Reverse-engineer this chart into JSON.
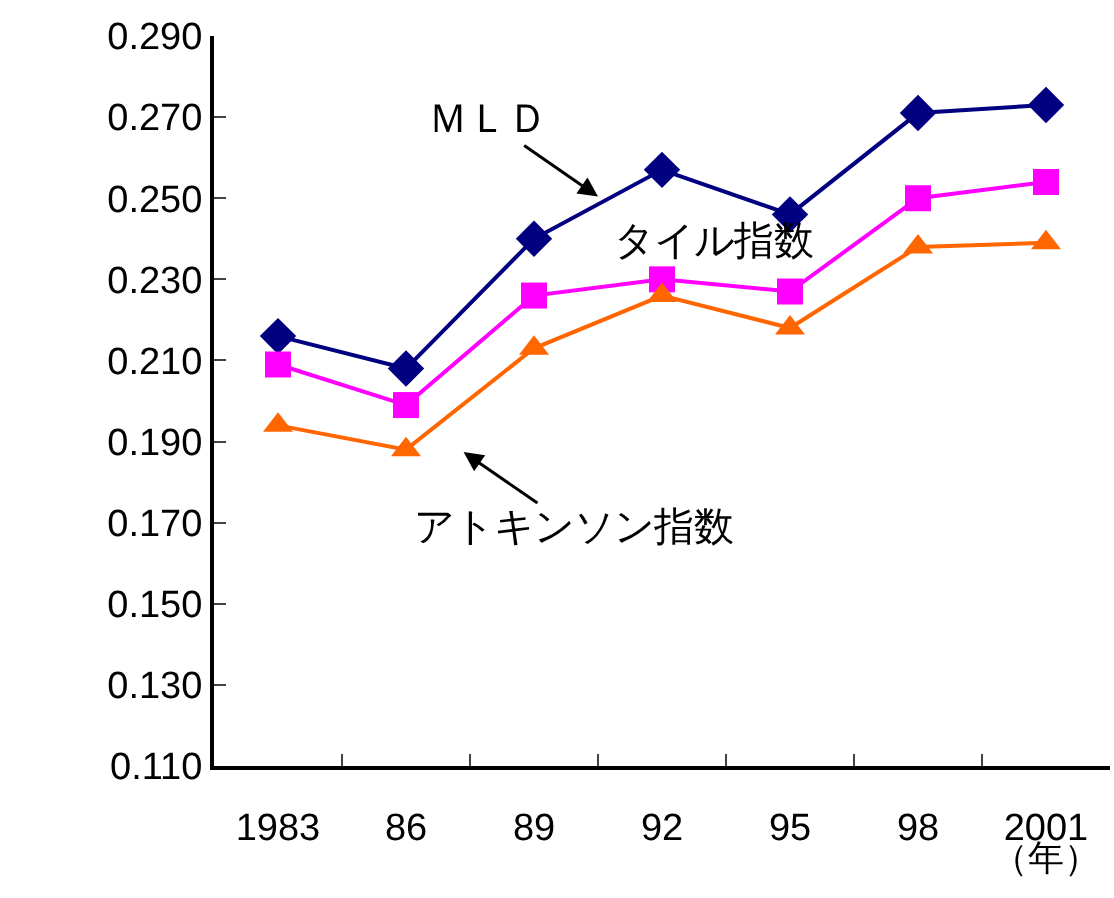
{
  "chart_data": {
    "type": "line",
    "categories": [
      "1983",
      "86",
      "89",
      "92",
      "95",
      "98",
      "2001"
    ],
    "xlabel": "（年）",
    "ylim": [
      0.11,
      0.29
    ],
    "yticks": [
      {
        "value": 0.11,
        "label": "0.110"
      },
      {
        "value": 0.13,
        "label": "0.130"
      },
      {
        "value": 0.15,
        "label": "0.150"
      },
      {
        "value": 0.17,
        "label": "0.170"
      },
      {
        "value": 0.19,
        "label": "0.190"
      },
      {
        "value": 0.21,
        "label": "0.210"
      },
      {
        "value": 0.23,
        "label": "0.230"
      },
      {
        "value": 0.25,
        "label": "0.250"
      },
      {
        "value": 0.27,
        "label": "0.270"
      },
      {
        "value": 0.29,
        "label": "0.290"
      }
    ],
    "legend": false,
    "series": [
      {
        "name": "ＭＬＤ",
        "color": "#000080",
        "marker": "diamond",
        "values": [
          0.216,
          0.208,
          0.24,
          0.257,
          0.246,
          0.271,
          0.273
        ]
      },
      {
        "name": "タイル指数",
        "color": "#ff00ff",
        "marker": "square",
        "values": [
          0.209,
          0.199,
          0.226,
          0.23,
          0.227,
          0.25,
          0.254
        ]
      },
      {
        "name": "アトキンソン指数",
        "color": "#ff6600",
        "marker": "triangle",
        "values": [
          0.194,
          0.188,
          0.213,
          0.226,
          0.218,
          0.238,
          0.239
        ]
      }
    ]
  }
}
